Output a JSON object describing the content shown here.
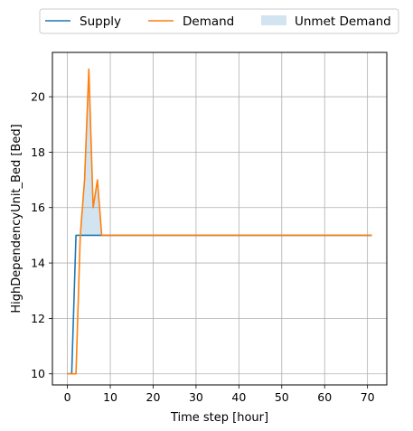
{
  "chart_data": {
    "type": "line",
    "xlabel": "Time step [hour]",
    "ylabel": "HighDependencyUnit_Bed [Bed]",
    "xlim": [
      -3.5,
      74.5
    ],
    "ylim": [
      9.6,
      21.6
    ],
    "xticks": [
      0,
      10,
      20,
      30,
      40,
      50,
      60,
      70
    ],
    "yticks": [
      10,
      12,
      14,
      16,
      18,
      20
    ],
    "grid": true,
    "legend": {
      "placement": "top-center-outside",
      "entries": [
        "Supply",
        "Demand",
        "Unmet Demand"
      ]
    },
    "series": [
      {
        "name": "Supply",
        "color": "#1f77b4",
        "x": [
          0,
          1,
          2,
          3,
          4,
          5,
          6,
          7,
          8,
          71
        ],
        "values": [
          10,
          10,
          15,
          15,
          15,
          15,
          15,
          15,
          15,
          15
        ]
      },
      {
        "name": "Demand",
        "color": "#ff7f0e",
        "x": [
          0,
          1,
          2,
          3,
          4,
          5,
          6,
          7,
          8,
          71
        ],
        "values": [
          10,
          10,
          10,
          15,
          17,
          21,
          16,
          17,
          15,
          15
        ]
      }
    ],
    "fill": {
      "name": "Unmet Demand",
      "color": "#1f77b4",
      "opacity": 0.2,
      "between": [
        "Supply",
        "Demand"
      ],
      "where": "Demand > Supply"
    }
  }
}
